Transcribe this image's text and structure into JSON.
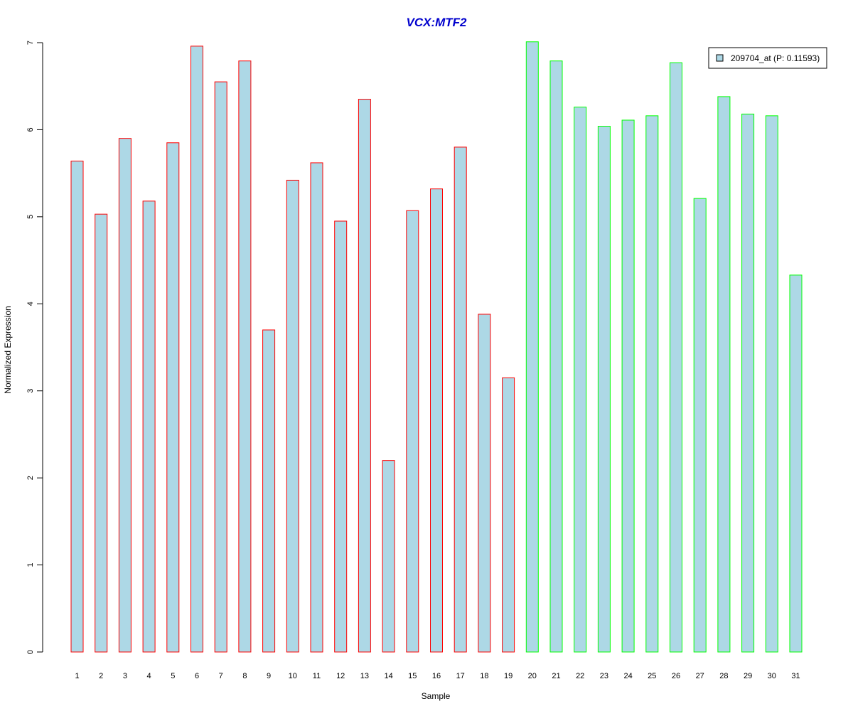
{
  "chart_data": {
    "type": "bar",
    "title": "VCX:MTF2",
    "title_color": "#0000CD",
    "xlabel": "Sample",
    "ylabel": "Normalized Expression",
    "ylim": [
      0,
      7
    ],
    "y_ticks": [
      0,
      1,
      2,
      3,
      4,
      5,
      6,
      7
    ],
    "grid": false,
    "legend_position": "top-right",
    "categories": [
      "1",
      "2",
      "3",
      "4",
      "5",
      "6",
      "7",
      "8",
      "9",
      "10",
      "11",
      "12",
      "13",
      "14",
      "15",
      "16",
      "17",
      "18",
      "19",
      "20",
      "21",
      "22",
      "23",
      "24",
      "25",
      "26",
      "27",
      "28",
      "29",
      "30",
      "31"
    ],
    "series": [
      {
        "name": "209704_at (P: 0.11593)",
        "fill_color": "#ADD8E6",
        "values": [
          5.64,
          5.03,
          5.9,
          5.18,
          5.85,
          6.96,
          6.55,
          6.79,
          3.7,
          5.42,
          5.62,
          4.95,
          6.35,
          2.2,
          5.07,
          5.32,
          5.8,
          3.88,
          3.15,
          7.01,
          6.79,
          6.26,
          6.04,
          6.11,
          6.16,
          6.77,
          5.21,
          6.38,
          6.18,
          6.16,
          4.33
        ]
      }
    ],
    "groups": [
      {
        "border_color": "#FF0000",
        "from": 1,
        "to": 19
      },
      {
        "border_color": "#00FF00",
        "from": 20,
        "to": 31
      }
    ]
  }
}
